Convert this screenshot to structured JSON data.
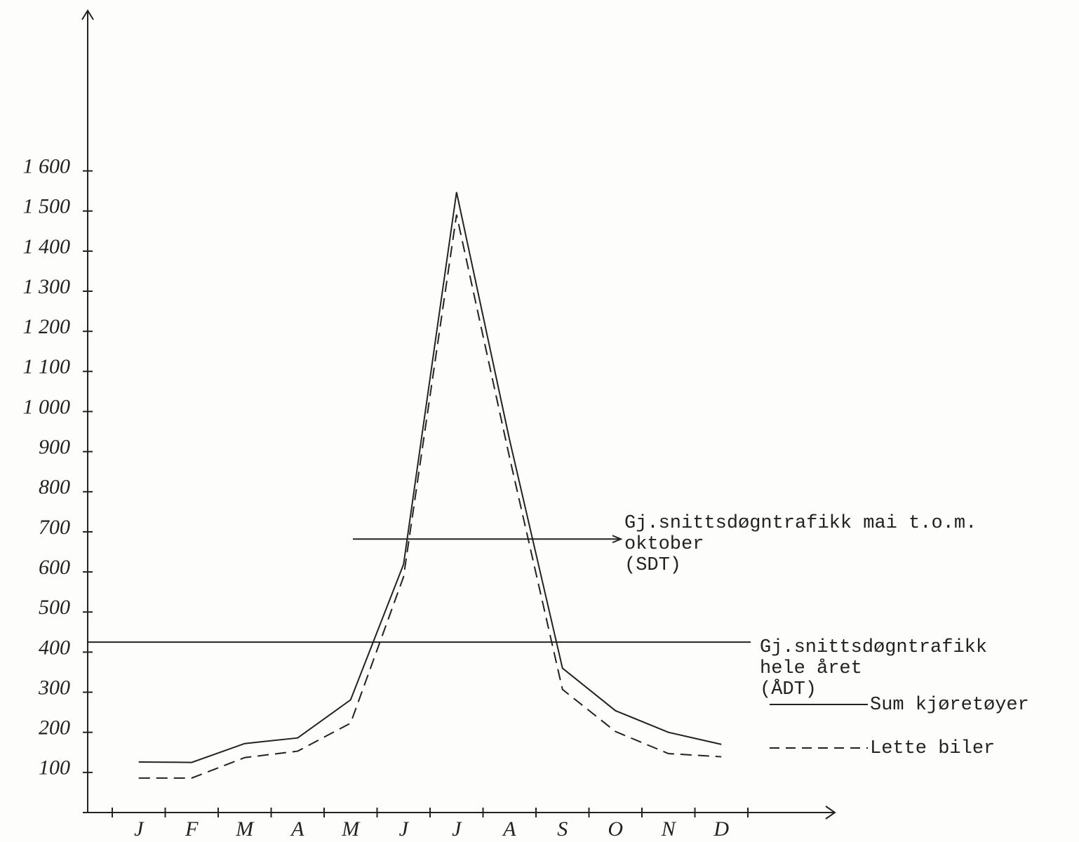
{
  "chart_data": {
    "type": "line",
    "categories": [
      "J",
      "F",
      "M",
      "A",
      "M",
      "J",
      "J",
      "A",
      "S",
      "O",
      "N",
      "D"
    ],
    "series": [
      {
        "name": "Sum kjøretøyer",
        "color": "#222222",
        "style": "solid",
        "values": [
          126,
          125,
          172,
          186,
          281,
          619,
          1547,
          930,
          360,
          254,
          200,
          170
        ]
      },
      {
        "name": "Lette biler",
        "color": "#222222",
        "style": "dashed",
        "values": [
          86,
          86,
          137,
          153,
          223,
          588,
          1491,
          886,
          307,
          202,
          147,
          139
        ]
      }
    ],
    "reference_lines": [
      {
        "label": [
          "Gj.snittsdøgntrafikk mai t.o.m.",
          "oktober",
          "(SDT)"
        ],
        "value": 682
      },
      {
        "label": [
          "Gj.snittsdøgntrafikk",
          "hele året",
          "(ÅDT)"
        ],
        "value": 425
      }
    ],
    "ylim": [
      0,
      2000
    ],
    "yticks": [
      100,
      200,
      300,
      400,
      500,
      600,
      700,
      800,
      900,
      {
        "value": 1000,
        "label": "1 000"
      },
      {
        "value": 1100,
        "label": "1 100"
      },
      {
        "value": 1200,
        "label": "1 200"
      },
      {
        "value": 1300,
        "label": "1 300"
      },
      {
        "value": 1400,
        "label": "1 400"
      },
      {
        "value": 1500,
        "label": "1 500"
      },
      {
        "value": 1600,
        "label": "1 600"
      }
    ],
    "grid": false
  }
}
